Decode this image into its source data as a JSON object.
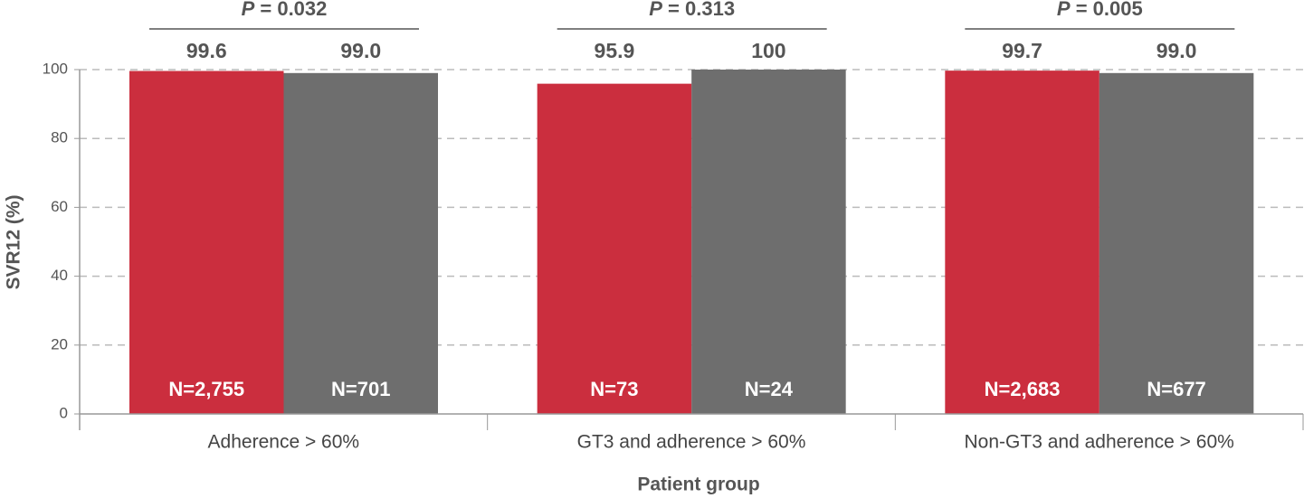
{
  "chart_data": {
    "type": "bar",
    "y_label": "SVR12 (%)",
    "x_label": "Patient group",
    "categories": [
      "Adherence > 60%",
      "GT3 and adherence > 60%",
      "Non-GT3 and adherence > 60%"
    ],
    "p_values": [
      "P = 0.032",
      "P = 0.313",
      "P = 0.005"
    ],
    "series": [
      {
        "color": "#cb2e3e",
        "values": [
          99.6,
          95.9,
          99.7
        ],
        "value_labels": [
          "99.6",
          "95.9",
          "99.7"
        ],
        "n_labels": [
          "N=2,755",
          "N=73",
          "N=2,683"
        ]
      },
      {
        "color": "#6e6e6e",
        "values": [
          99.0,
          100,
          99.0
        ],
        "value_labels": [
          "99.0",
          "100",
          "99.0"
        ],
        "n_labels": [
          "N=701",
          "N=24",
          "N=677"
        ]
      }
    ],
    "ylim": [
      0,
      100
    ],
    "yticks": [
      0,
      20,
      40,
      60,
      80,
      100
    ],
    "grid": true
  }
}
